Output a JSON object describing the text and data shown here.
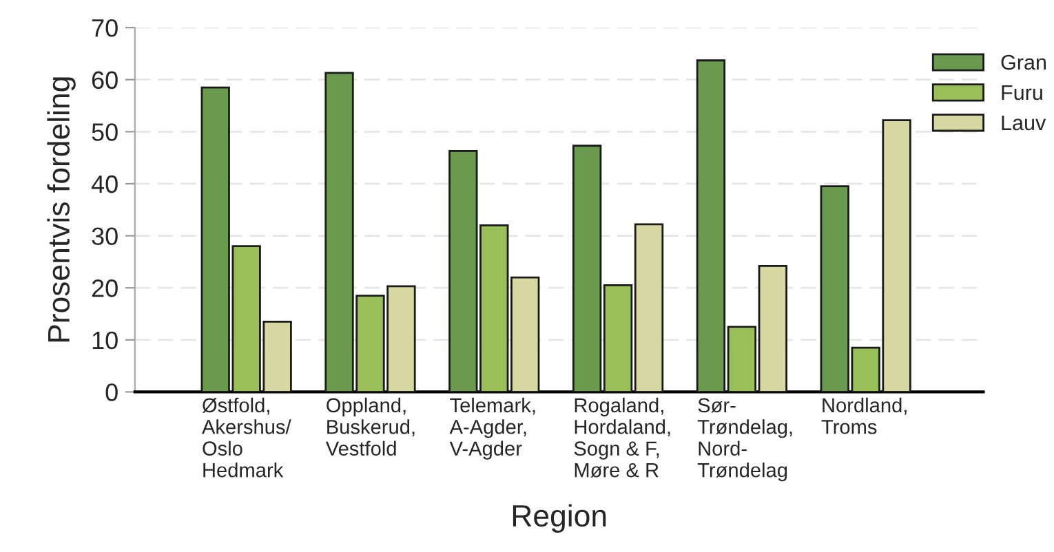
{
  "chart_data": {
    "type": "bar",
    "xlabel": "Region",
    "ylabel": "Prosentvis fordeling",
    "categories": [
      "Østfold,\nAkershus/\nOslo\nHedmark",
      "Oppland,\nBuskerud,\nVestfold",
      "Telemark,\nA-Agder,\nV-Agder",
      "Rogaland,\nHordaland,\nSogn & F,\nMøre & R",
      "Sør-\nTrøndelag,\nNord-\nTrøndelag",
      "Nordland,\nTroms"
    ],
    "series": [
      {
        "name": "Gran",
        "color": "#6a9a4e",
        "values": [
          58.5,
          61.3,
          46.3,
          47.3,
          63.7,
          39.5
        ]
      },
      {
        "name": "Furu",
        "color": "#98bf58",
        "values": [
          28,
          18.5,
          32,
          20.5,
          12.5,
          8.5
        ]
      },
      {
        "name": "Lauv",
        "color": "#d8d9a2",
        "values": [
          13.5,
          20.3,
          22,
          32.2,
          24.2,
          52.2
        ]
      }
    ],
    "ylim": [
      0,
      70
    ],
    "yticks": [
      0,
      10,
      20,
      30,
      40,
      50,
      60,
      70
    ],
    "grid": "y",
    "legend": "top right"
  }
}
